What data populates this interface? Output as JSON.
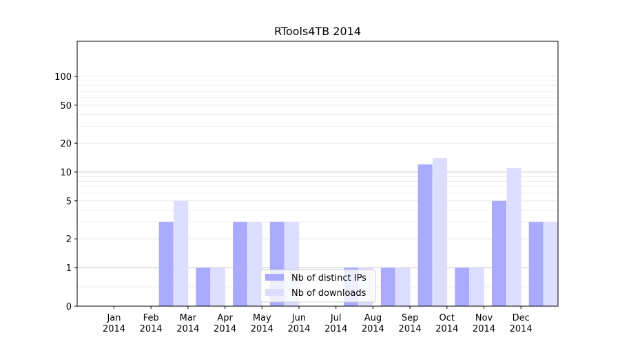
{
  "chart_data": {
    "type": "bar",
    "title": "RTools4TB 2014",
    "xlabel": "",
    "ylabel": "",
    "yscale": "symlog",
    "ylim": [
      0,
      130
    ],
    "yticks": [
      0,
      1,
      2,
      5,
      10,
      20,
      50,
      100
    ],
    "ytick_labels": [
      "0",
      "1",
      "2",
      "5",
      "10",
      "20",
      "50",
      "100"
    ],
    "grid": true,
    "legend_position": "bottom-center",
    "categories": [
      {
        "month": "Jan",
        "year": "2014"
      },
      {
        "month": "Feb",
        "year": "2014"
      },
      {
        "month": "Mar",
        "year": "2014"
      },
      {
        "month": "Apr",
        "year": "2014"
      },
      {
        "month": "May",
        "year": "2014"
      },
      {
        "month": "Jun",
        "year": "2014"
      },
      {
        "month": "Jul",
        "year": "2014"
      },
      {
        "month": "Aug",
        "year": "2014"
      },
      {
        "month": "Sep",
        "year": "2014"
      },
      {
        "month": "Oct",
        "year": "2014"
      },
      {
        "month": "Nov",
        "year": "2014"
      },
      {
        "month": "Dec",
        "year": "2014"
      }
    ],
    "series": [
      {
        "name": "Nb of distinct IPs",
        "color": "#aaaaff",
        "values": [
          0,
          3,
          1,
          3,
          3,
          0,
          1,
          1,
          12,
          1,
          5,
          3
        ]
      },
      {
        "name": "Nb of downloads",
        "color": "#ddddff",
        "values": [
          0,
          5,
          1,
          3,
          3,
          0,
          1,
          1,
          14,
          1,
          11,
          3
        ]
      }
    ]
  }
}
